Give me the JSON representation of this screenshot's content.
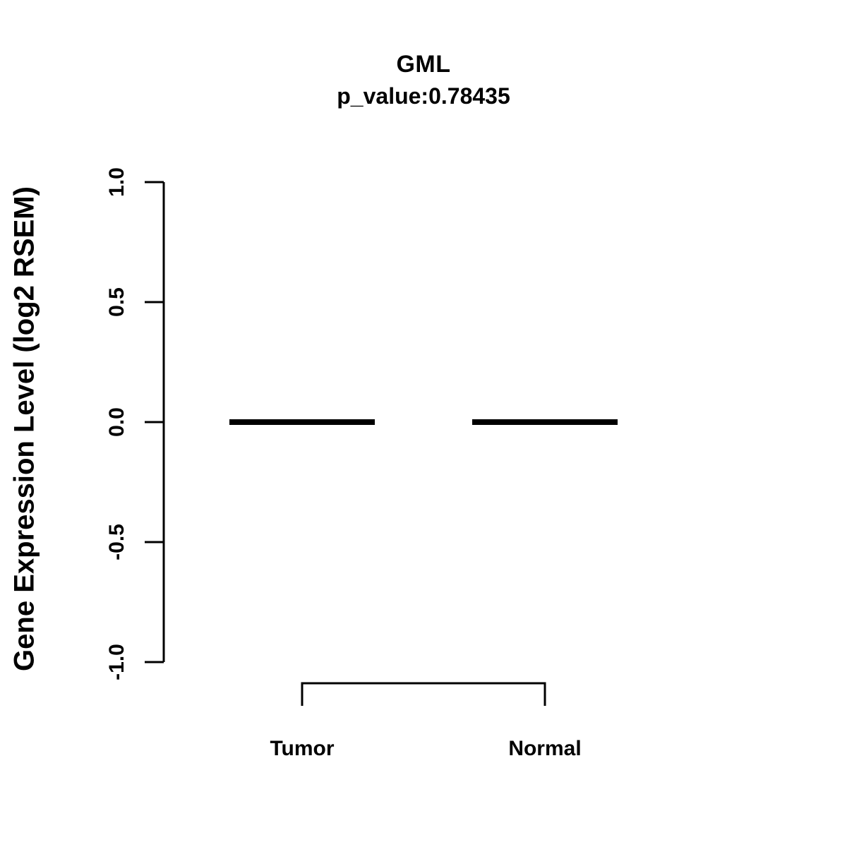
{
  "chart_data": {
    "type": "boxplot",
    "title": "GML",
    "subtitle": "p_value:0.78435",
    "ylabel": "Gene Expression Level (log2 RSEM)",
    "xlabel": "",
    "categories": [
      "Tumor",
      "Normal"
    ],
    "ylim": [
      -1.0,
      1.0
    ],
    "yticks": [
      -1.0,
      -0.5,
      0.0,
      0.5,
      1.0
    ],
    "ytick_labels": [
      "-1.0",
      "-0.5",
      "0.0",
      "0.5",
      "1.0"
    ],
    "grid": false,
    "legend": "none",
    "series": [
      {
        "name": "Tumor",
        "median": 0.0,
        "q1": 0.0,
        "q3": 0.0,
        "whisker_low": 0.0,
        "whisker_high": 0.0
      },
      {
        "name": "Normal",
        "median": 0.0,
        "q1": 0.0,
        "q3": 0.0,
        "whisker_low": 0.0,
        "whisker_high": 0.0
      }
    ],
    "colors": {
      "line": "#000000",
      "background": "#ffffff"
    }
  }
}
